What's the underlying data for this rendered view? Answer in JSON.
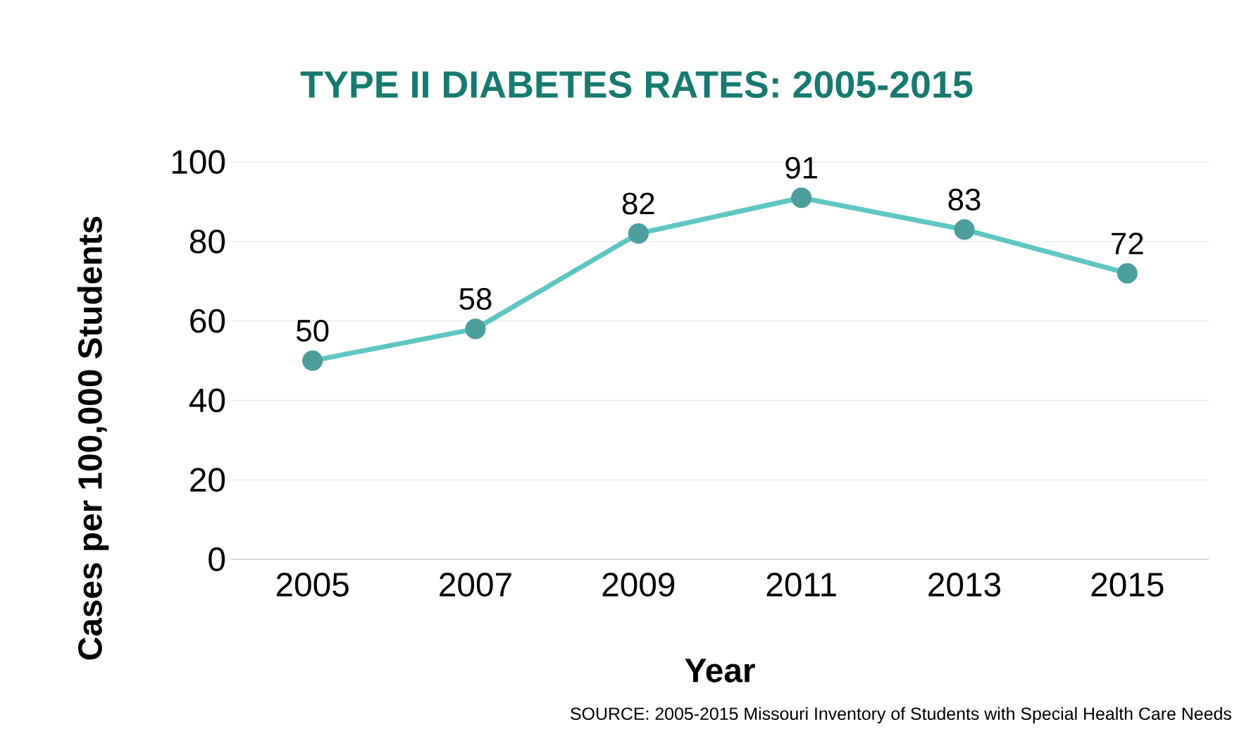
{
  "chart_data": {
    "type": "line",
    "title": "TYPE II DIABETES RATES: 2005-2015",
    "xlabel": "Year",
    "ylabel": "Cases per 100,000 Students",
    "categories": [
      "2005",
      "2007",
      "2009",
      "2011",
      "2013",
      "2015"
    ],
    "values": [
      50,
      58,
      82,
      91,
      83,
      72
    ],
    "color": "#5ec6c2",
    "ylim": [
      0,
      100
    ],
    "yticks": [
      0,
      20,
      40,
      60,
      80,
      100
    ],
    "grid": "y",
    "marker": "circle",
    "line_style": "solid",
    "data_labels": true,
    "annotations": [
      "SOURCE: 2005-2015 Missouri Inventory of Students with Special Health Care Needs"
    ]
  }
}
